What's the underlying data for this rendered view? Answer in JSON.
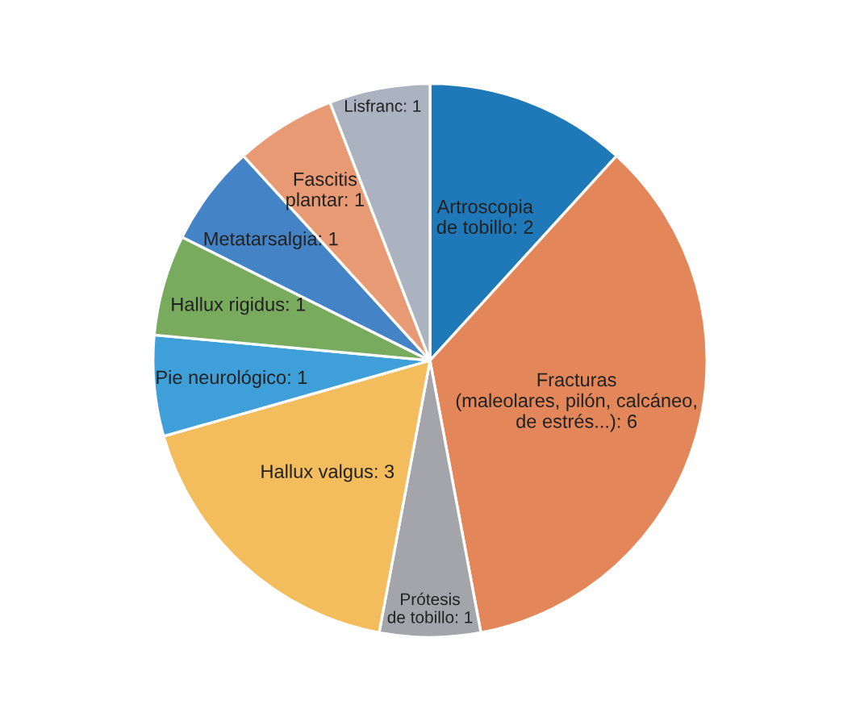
{
  "chart_data": {
    "type": "pie",
    "categories": [
      "Artroscopia\nde tobillo: 2",
      "Fracturas\n(maleolares, pilón, calcáneo,\nde estrés...): 6",
      "Prótesis\nde tobillo: 1",
      "Hallux valgus: 3",
      "Pie neurológico: 1",
      "Hallux rigidus: 1",
      "Metatarsalgia: 1",
      "Fascitis\nplantar: 1",
      "Lisfranc: 1"
    ],
    "values": [
      2,
      6,
      1,
      3,
      1,
      1,
      1,
      1,
      1
    ],
    "colors": [
      "#1f78b8",
      "#e3875a",
      "#a3a5aa",
      "#f3bc5c",
      "#3f9fd8",
      "#78ab5d",
      "#4483c6",
      "#e89a74",
      "#aab3bf"
    ]
  }
}
